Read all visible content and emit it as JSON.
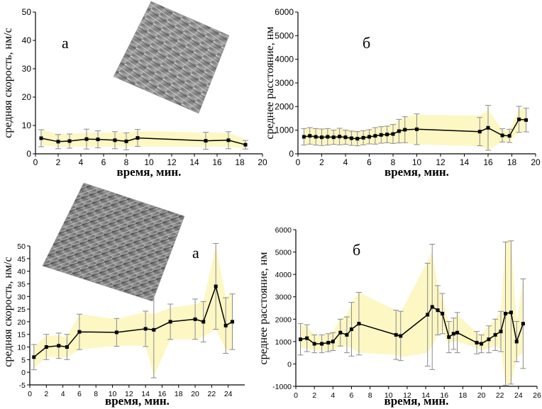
{
  "colors": {
    "band": "#fdf7c4",
    "line": "#000000",
    "error_bar": "#8a8a8a",
    "axis": "#000000"
  },
  "chart_data": [
    {
      "type": "line",
      "panel": "a",
      "xlabel": "время, мин.",
      "ylabel": "средняя скорость, нм/с",
      "xlim": [
        0,
        20
      ],
      "ylim": [
        0,
        50
      ],
      "xticks": [
        0,
        2,
        4,
        6,
        8,
        10,
        12,
        14,
        16,
        18,
        20
      ],
      "yticks": [
        0,
        10,
        20,
        30,
        40,
        50
      ],
      "series": [
        {
          "x": [
            0.5,
            2,
            3,
            4.5,
            5.5,
            7,
            8,
            9,
            15,
            17,
            18.5
          ],
          "y": [
            5.5,
            4.3,
            4.5,
            5.2,
            5.1,
            4.8,
            4.4,
            5.6,
            4.6,
            4.8,
            3.2
          ],
          "err": [
            3,
            2.5,
            2.5,
            3.5,
            3,
            3,
            3,
            3,
            3,
            3,
            1.5
          ]
        }
      ],
      "band_lower": [
        3.0,
        2.5,
        2.5,
        2.5,
        2.5,
        2.5,
        2.5,
        2.5,
        2.5,
        2.5,
        2.0
      ],
      "band_upper": [
        8.5,
        7.0,
        7.0,
        7.5,
        7.5,
        7.5,
        7.5,
        8.0,
        7.5,
        7.5,
        5.0
      ],
      "grid": false
    },
    {
      "type": "line",
      "panel": "б",
      "xlabel": "время, мин.",
      "ylabel": "среднее расстояние, нм",
      "xlim": [
        0,
        20
      ],
      "ylim": [
        0,
        6000
      ],
      "xticks": [
        0,
        2,
        4,
        6,
        8,
        10,
        12,
        14,
        16,
        18,
        20
      ],
      "yticks": [
        0,
        1000,
        2000,
        3000,
        4000,
        5000,
        6000
      ],
      "series": [
        {
          "x": [
            0.5,
            1,
            1.5,
            2,
            2.5,
            3,
            3.5,
            4,
            4.5,
            5,
            5.5,
            6,
            6.5,
            7,
            7.5,
            8,
            8.5,
            9,
            10,
            15.3,
            16,
            17.2,
            17.8,
            18.6,
            19.2
          ],
          "y": [
            720,
            760,
            720,
            700,
            720,
            700,
            730,
            700,
            660,
            640,
            680,
            720,
            760,
            800,
            820,
            840,
            960,
            1020,
            1040,
            940,
            1100,
            780,
            760,
            1460,
            1430
          ],
          "err": [
            350,
            350,
            350,
            350,
            350,
            300,
            350,
            300,
            300,
            300,
            300,
            300,
            350,
            350,
            350,
            400,
            500,
            550,
            650,
            600,
            950,
            280,
            280,
            550,
            500
          ]
        }
      ],
      "band_lower": [
        370,
        400,
        380,
        370,
        380,
        380,
        380,
        390,
        360,
        340,
        380,
        420,
        420,
        440,
        450,
        430,
        450,
        450,
        400,
        320,
        170,
        500,
        480,
        900,
        950
      ],
      "band_upper": [
        1060,
        1100,
        1080,
        1050,
        1060,
        1030,
        1060,
        1040,
        1000,
        960,
        980,
        1040,
        1100,
        1150,
        1200,
        1250,
        1420,
        1550,
        1650,
        1620,
        1880,
        1000,
        1000,
        1900,
        1900
      ],
      "grid": false
    },
    {
      "type": "line",
      "panel": "a",
      "xlabel": "время, мин.",
      "ylabel": "средняя скорость, нм/с",
      "xlim": [
        0,
        26
      ],
      "ylim": [
        -5,
        50
      ],
      "xticks": [
        0,
        2,
        4,
        6,
        8,
        10,
        12,
        14,
        16,
        18,
        20,
        22,
        24
      ],
      "yticks": [
        -5,
        0,
        5,
        10,
        15,
        20,
        25,
        30,
        35,
        40,
        45,
        50
      ],
      "series": [
        {
          "x": [
            0.5,
            2,
            3.5,
            4.5,
            6,
            10.5,
            14,
            15,
            17,
            20,
            21,
            22.5,
            23.7,
            24.5
          ],
          "y": [
            6,
            10,
            10.5,
            10,
            16,
            15.8,
            17.2,
            16.8,
            20,
            21,
            20,
            34,
            18.5,
            20
          ],
          "err": [
            5,
            5,
            5,
            5,
            7,
            5.5,
            7,
            19,
            7,
            8,
            8,
            17,
            11,
            11
          ]
        }
      ],
      "band_lower": [
        1.5,
        6,
        6,
        6,
        9,
        10.5,
        10.5,
        -1.5,
        13,
        13,
        14,
        17,
        9,
        9
      ],
      "band_upper": [
        10,
        14.5,
        14.5,
        14,
        23,
        21,
        24,
        23,
        25.5,
        27,
        28,
        50,
        30,
        31
      ],
      "grid": false
    },
    {
      "type": "line",
      "panel": "б",
      "xlabel": "время, мин.",
      "ylabel": "среднее расстояние, нм",
      "xlim": [
        0,
        26
      ],
      "ylim": [
        -1000,
        6000
      ],
      "xticks": [
        0,
        2,
        4,
        6,
        8,
        10,
        12,
        14,
        16,
        18,
        20,
        22,
        24,
        26
      ],
      "yticks": [
        -1000,
        0,
        1000,
        2000,
        3000,
        4000,
        5000,
        6000
      ],
      "series": [
        {
          "x": [
            0.5,
            1.2,
            2,
            2.8,
            3.5,
            4,
            4.8,
            5.5,
            6,
            6.8,
            10.8,
            11.3,
            14.2,
            14.7,
            15.3,
            15.8,
            16.5,
            17,
            17.4,
            19.5,
            20,
            20.8,
            21.5,
            22.1,
            22.6,
            23.2,
            23.8,
            24.5
          ],
          "y": [
            1100,
            1150,
            900,
            900,
            950,
            1000,
            1400,
            1300,
            1550,
            1800,
            1300,
            1250,
            2200,
            2550,
            2400,
            2250,
            1200,
            1350,
            1400,
            950,
            900,
            1100,
            1300,
            1450,
            2250,
            2300,
            1000,
            1800
          ],
          "err": [
            700,
            600,
            400,
            400,
            400,
            400,
            600,
            800,
            1200,
            1400,
            1100,
            1100,
            2300,
            2800,
            1100,
            900,
            700,
            700,
            900,
            500,
            400,
            600,
            700,
            900,
            3200,
            3200,
            900,
            2000
          ]
        }
      ],
      "band_lower": [
        700,
        700,
        600,
        600,
        600,
        600,
        800,
        800,
        700,
        500,
        400,
        300,
        500,
        800,
        1300,
        1500,
        900,
        1000,
        1000,
        700,
        600,
        700,
        800,
        700,
        -900,
        -900,
        300,
        500
      ],
      "band_upper": [
        1700,
        1700,
        1300,
        1250,
        1350,
        1450,
        2000,
        2200,
        2700,
        3200,
        2400,
        2300,
        4600,
        5000,
        3500,
        3000,
        1800,
        2000,
        2200,
        1400,
        1300,
        1700,
        2000,
        2400,
        5500,
        5500,
        1900,
        3800
      ],
      "grid": false
    }
  ]
}
